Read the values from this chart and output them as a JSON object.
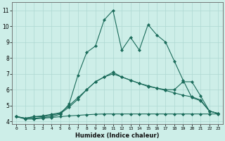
{
  "xlabel": "Humidex (Indice chaleur)",
  "bg_color": "#cdeee8",
  "grid_color": "#aed8d2",
  "line_color": "#1a6b5a",
  "xlim": [
    -0.5,
    23.5
  ],
  "ylim": [
    3.85,
    11.5
  ],
  "xticks": [
    0,
    1,
    2,
    3,
    4,
    5,
    6,
    7,
    8,
    9,
    10,
    11,
    12,
    13,
    14,
    15,
    16,
    17,
    18,
    19,
    20,
    21,
    22,
    23
  ],
  "yticks": [
    4,
    5,
    6,
    7,
    8,
    9,
    10,
    11
  ],
  "series": [
    [
      4.3,
      4.15,
      4.15,
      4.2,
      4.25,
      4.3,
      4.35,
      4.38,
      4.42,
      4.45,
      4.47,
      4.47,
      4.47,
      4.47,
      4.47,
      4.47,
      4.47,
      4.47,
      4.47,
      4.47,
      4.47,
      4.47,
      4.47,
      4.47
    ],
    [
      4.3,
      4.2,
      4.3,
      4.3,
      4.4,
      4.5,
      4.9,
      5.4,
      6.0,
      6.5,
      6.8,
      7.0,
      6.8,
      6.6,
      6.4,
      6.2,
      6.1,
      6.0,
      6.0,
      6.5,
      6.5,
      5.6,
      4.65,
      4.5
    ],
    [
      4.3,
      4.2,
      4.3,
      4.35,
      4.45,
      4.55,
      5.0,
      5.5,
      6.0,
      6.5,
      6.8,
      7.1,
      6.8,
      6.6,
      6.4,
      6.25,
      6.1,
      5.95,
      5.8,
      5.65,
      5.55,
      5.35,
      4.65,
      4.5
    ],
    [
      4.3,
      4.2,
      4.2,
      4.25,
      4.3,
      4.45,
      5.1,
      6.9,
      8.35,
      8.75,
      10.4,
      11.0,
      8.5,
      9.3,
      8.5,
      10.1,
      9.45,
      9.0,
      7.8,
      6.6,
      5.5,
      5.3,
      4.65,
      4.5
    ]
  ]
}
